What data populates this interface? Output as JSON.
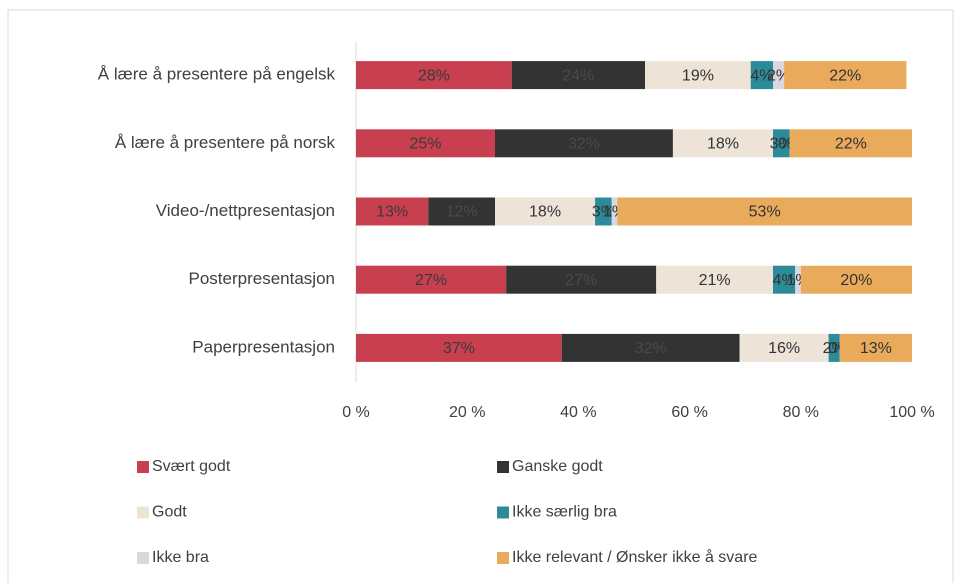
{
  "chart_data": {
    "type": "stacked-bar-horizontal",
    "categories": [
      "Å lære å presentere på engelsk",
      "Å lære å presentere på norsk",
      "Video-/nettpresentasjon",
      "Posterpresentasjon",
      "Paperpresentasjon"
    ],
    "series": [
      {
        "name": "Svært godt",
        "color": "#c8404f",
        "label_color": "#3a3a3a",
        "values": [
          28,
          25,
          13,
          27,
          37
        ],
        "value_labels": [
          "28%",
          "25%",
          "13%",
          "27%",
          "37%"
        ]
      },
      {
        "name": "Ganske godt",
        "color": "#333333",
        "label_color": "#4a4a4a",
        "values": [
          24,
          32,
          12,
          27,
          32
        ],
        "value_labels": [
          "24%",
          "32%",
          "12%",
          "27%",
          "32%"
        ]
      },
      {
        "name": "Godt",
        "color": "#ede3d6",
        "label_color": "#333333",
        "values": [
          19,
          18,
          18,
          21,
          16
        ],
        "value_labels": [
          "19%",
          "18%",
          "18%",
          "21%",
          "16%"
        ]
      },
      {
        "name": "Ikke særlig bra",
        "color": "#2c8b98",
        "label_color": "#333333",
        "values": [
          4,
          3,
          3,
          4,
          2
        ],
        "value_labels": [
          "4%",
          "3%",
          "3%",
          "4%",
          "2%"
        ]
      },
      {
        "name": "Ikke bra",
        "color": "#dcd6e0",
        "label_color": "#333333",
        "values": [
          2,
          0,
          1,
          1,
          0
        ],
        "value_labels": [
          "2%",
          "0%",
          "1%",
          "1%",
          "0%"
        ]
      },
      {
        "name": "Ikke relevant / Ønsker ikke å svare",
        "color": "#e9aa5c",
        "label_color": "#333333",
        "values": [
          22,
          22,
          53,
          20,
          13
        ],
        "value_labels": [
          "22%",
          "22%",
          "53%",
          "20%",
          "13%"
        ]
      }
    ],
    "xlim": [
      0,
      100
    ],
    "xticks": [
      {
        "value": 0,
        "label": "0 %"
      },
      {
        "value": 20,
        "label": "20 %"
      },
      {
        "value": 40,
        "label": "40 %"
      },
      {
        "value": 60,
        "label": "60 %"
      },
      {
        "value": 80,
        "label": "80 %"
      },
      {
        "value": 100,
        "label": "100 %"
      }
    ],
    "legend": "bottom"
  }
}
